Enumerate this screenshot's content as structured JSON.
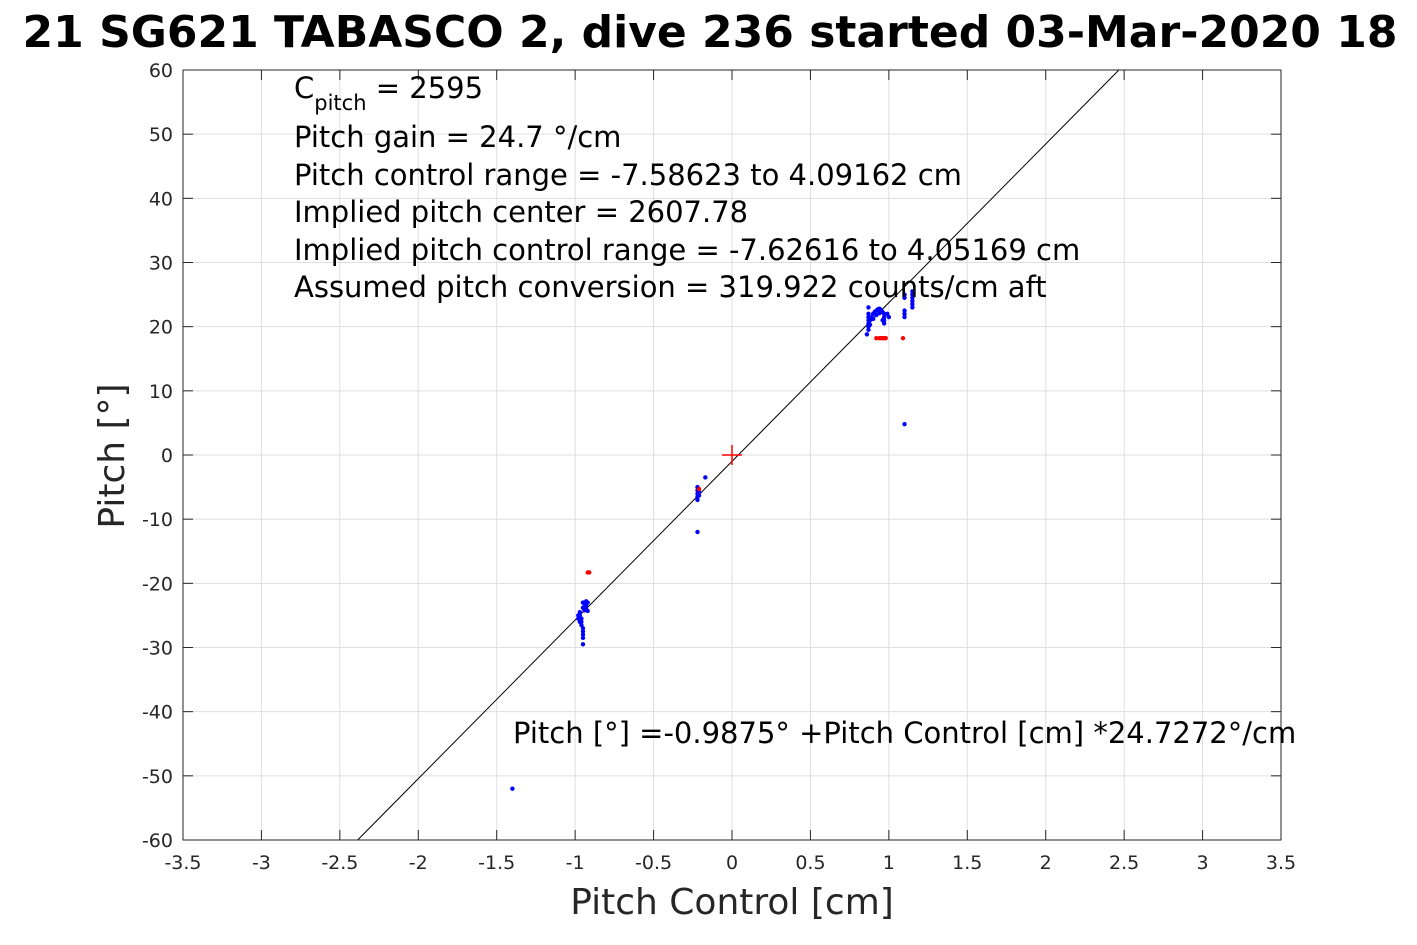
{
  "chart_data": {
    "type": "scatter",
    "title": "21 SG621 TABASCO 2, dive 236 started 03-Mar-2020 18",
    "xlabel": "Pitch Control [cm]",
    "ylabel": "Pitch [°]",
    "xlim": [
      -3.5,
      3.5
    ],
    "ylim": [
      -60,
      60
    ],
    "xticks": [
      -3.5,
      -3,
      -2.5,
      -2,
      -1.5,
      -1,
      -0.5,
      0,
      0.5,
      1,
      1.5,
      2,
      2.5,
      3,
      3.5
    ],
    "xtick_labels": [
      "-3.5",
      "-3",
      "-2.5",
      "-2",
      "-1.5",
      "-1",
      "-0.5",
      "0",
      "0.5",
      "1",
      "1.5",
      "2",
      "2.5",
      "3",
      "3.5"
    ],
    "yticks": [
      -60,
      -50,
      -40,
      -30,
      -20,
      -10,
      0,
      10,
      20,
      30,
      40,
      50,
      60
    ],
    "ytick_labels": [
      "-60",
      "-50",
      "-40",
      "-30",
      "-20",
      "-10",
      "0",
      "10",
      "20",
      "30",
      "40",
      "50",
      "60"
    ],
    "grid": true,
    "annotations": {
      "c_pitch_main": "C",
      "c_pitch_sub": "pitch",
      "c_pitch_rest": " = 2595",
      "lines": [
        "Pitch gain = 24.7 °/cm",
        "Pitch control range = -7.58623 to 4.09162 cm",
        "Implied pitch center = 2607.78",
        "Implied pitch control range = -7.62616 to 4.05169 cm",
        "Assumed pitch conversion = 319.922 counts/cm aft"
      ],
      "fit_equation": "Pitch [°] =-0.9875° +Pitch Control [cm] *24.7272°/cm"
    },
    "fit_line": {
      "intercept": -0.9875,
      "slope": 24.7272,
      "color": "#000000"
    },
    "center_marker": {
      "x": 0,
      "y": 0,
      "color": "#ff0000"
    },
    "series": [
      {
        "color": "#0000ff",
        "points": [
          [
            -0.97,
            -24.5
          ],
          [
            -0.97,
            -25.0
          ],
          [
            -0.96,
            -25.5
          ],
          [
            -0.96,
            -26.0
          ],
          [
            -0.96,
            -26.5
          ],
          [
            -0.95,
            -27.0
          ],
          [
            -0.95,
            -27.5
          ],
          [
            -0.95,
            -28.0
          ],
          [
            -0.95,
            -28.5
          ],
          [
            -0.95,
            -29.5
          ],
          [
            -0.98,
            -25.0
          ],
          [
            -0.98,
            -25.5
          ],
          [
            -0.97,
            -26.0
          ],
          [
            -0.95,
            -23.0
          ],
          [
            -0.94,
            -23.2
          ],
          [
            -0.93,
            -23.5
          ],
          [
            -0.93,
            -24.0
          ],
          [
            -0.92,
            -24.3
          ],
          [
            -0.93,
            -22.8
          ],
          [
            -0.92,
            -23.0
          ],
          [
            -0.95,
            -23.8
          ],
          [
            -0.94,
            -24.2
          ],
          [
            -0.22,
            -5.0
          ],
          [
            -0.22,
            -5.5
          ],
          [
            -0.22,
            -6.0
          ],
          [
            -0.22,
            -6.5
          ],
          [
            -0.22,
            -7.0
          ],
          [
            -0.21,
            -5.8
          ],
          [
            -0.21,
            -6.3
          ],
          [
            -0.22,
            -12.0
          ],
          [
            -0.17,
            -3.5
          ],
          [
            -1.4,
            -52.0
          ],
          [
            0.87,
            19.5
          ],
          [
            0.87,
            20.0
          ],
          [
            0.87,
            20.5
          ],
          [
            0.87,
            21.0
          ],
          [
            0.87,
            21.5
          ],
          [
            0.87,
            22.0
          ],
          [
            0.87,
            23.0
          ],
          [
            0.86,
            18.8
          ],
          [
            0.88,
            21.0
          ],
          [
            0.89,
            21.5
          ],
          [
            0.9,
            22.0
          ],
          [
            0.91,
            22.3
          ],
          [
            0.92,
            22.5
          ],
          [
            0.93,
            22.7
          ],
          [
            0.94,
            22.8
          ],
          [
            0.95,
            22.6
          ],
          [
            0.96,
            22.3
          ],
          [
            0.97,
            22.0
          ],
          [
            0.97,
            21.5
          ],
          [
            0.97,
            21.0
          ],
          [
            0.97,
            20.5
          ],
          [
            0.88,
            20.3
          ],
          [
            0.9,
            21.2
          ],
          [
            0.92,
            21.8
          ],
          [
            0.94,
            22.1
          ],
          [
            0.96,
            21.0
          ],
          [
            0.99,
            22.0
          ],
          [
            1.0,
            21.5
          ],
          [
            1.1,
            21.5
          ],
          [
            1.1,
            22.0
          ],
          [
            1.1,
            22.5
          ],
          [
            1.1,
            24.5
          ],
          [
            1.1,
            25.0
          ],
          [
            1.15,
            23.0
          ],
          [
            1.15,
            23.5
          ],
          [
            1.15,
            24.0
          ],
          [
            1.15,
            24.5
          ],
          [
            1.15,
            25.0
          ],
          [
            1.15,
            25.5
          ],
          [
            1.1,
            4.8
          ]
        ]
      },
      {
        "color": "#ff0000",
        "points": [
          [
            -0.92,
            -18.3
          ],
          [
            -0.91,
            -18.3
          ],
          [
            -0.21,
            -5.3
          ],
          [
            0.92,
            18.2
          ],
          [
            0.94,
            18.2
          ],
          [
            0.95,
            18.2
          ],
          [
            0.96,
            18.2
          ],
          [
            0.97,
            18.2
          ],
          [
            0.98,
            18.2
          ],
          [
            1.09,
            18.2
          ]
        ]
      }
    ]
  }
}
